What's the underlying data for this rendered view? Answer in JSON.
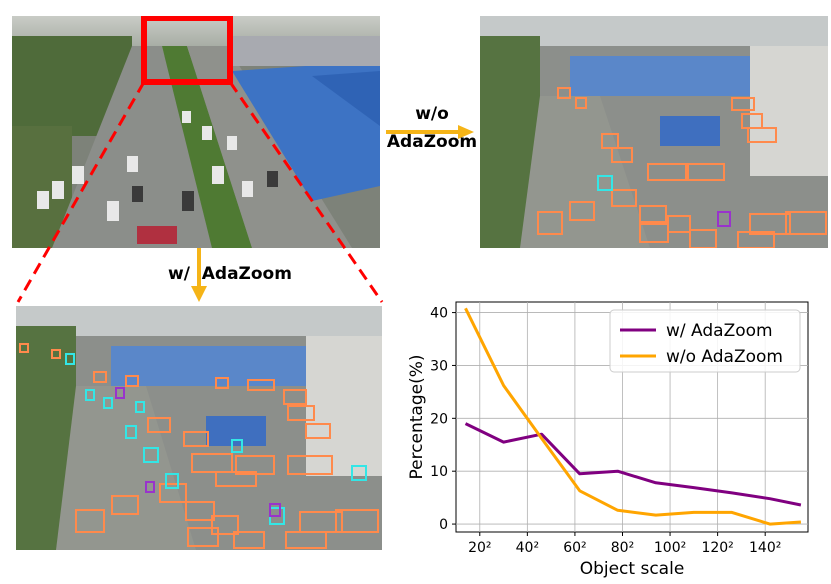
{
  "labels": {
    "without": "w/o",
    "without_name": "AdaZoom",
    "with": "w/  AdaZoom"
  },
  "colors": {
    "zoom_box": "#ff0000",
    "arrow": "#f5b417",
    "series_with": "#800080",
    "series_without": "#ffa500",
    "det_box_orange": "#ff8a4c",
    "det_box_cyan": "#33e6e6",
    "det_box_purple": "#9933cc"
  },
  "icons": {
    "arrow_right": "arrow-right-icon",
    "arrow_down": "arrow-down-icon"
  },
  "chart_data": {
    "type": "line",
    "xlabel": "Object scale",
    "ylabel": "Percentage(%)",
    "xlim": [
      10,
      158
    ],
    "ylim": [
      -1.5,
      42
    ],
    "xticks": [
      {
        "value": 20,
        "label": "20²"
      },
      {
        "value": 40,
        "label": "40²"
      },
      {
        "value": 60,
        "label": "60²"
      },
      {
        "value": 80,
        "label": "80²"
      },
      {
        "value": 100,
        "label": "100²"
      },
      {
        "value": 120,
        "label": "120²"
      },
      {
        "value": 140,
        "label": "140²"
      }
    ],
    "yticks": [
      0,
      10,
      20,
      30,
      40
    ],
    "grid": true,
    "legend_position": "top-right",
    "series": [
      {
        "name": "w/ AdaZoom",
        "color": "#800080",
        "x": [
          14,
          30,
          46,
          62,
          78,
          94,
          110,
          126,
          142,
          155
        ],
        "y": [
          19,
          15.5,
          17,
          9.5,
          10,
          7.8,
          6.9,
          5.9,
          4.8,
          3.6
        ]
      },
      {
        "name": "w/o AdaZoom",
        "color": "#ffa500",
        "x": [
          14,
          30,
          46,
          62,
          78,
          94,
          110,
          126,
          142,
          155
        ],
        "y": [
          40.8,
          26.2,
          16.2,
          6.3,
          2.6,
          1.7,
          2.2,
          2.2,
          0,
          0.4
        ]
      }
    ]
  }
}
